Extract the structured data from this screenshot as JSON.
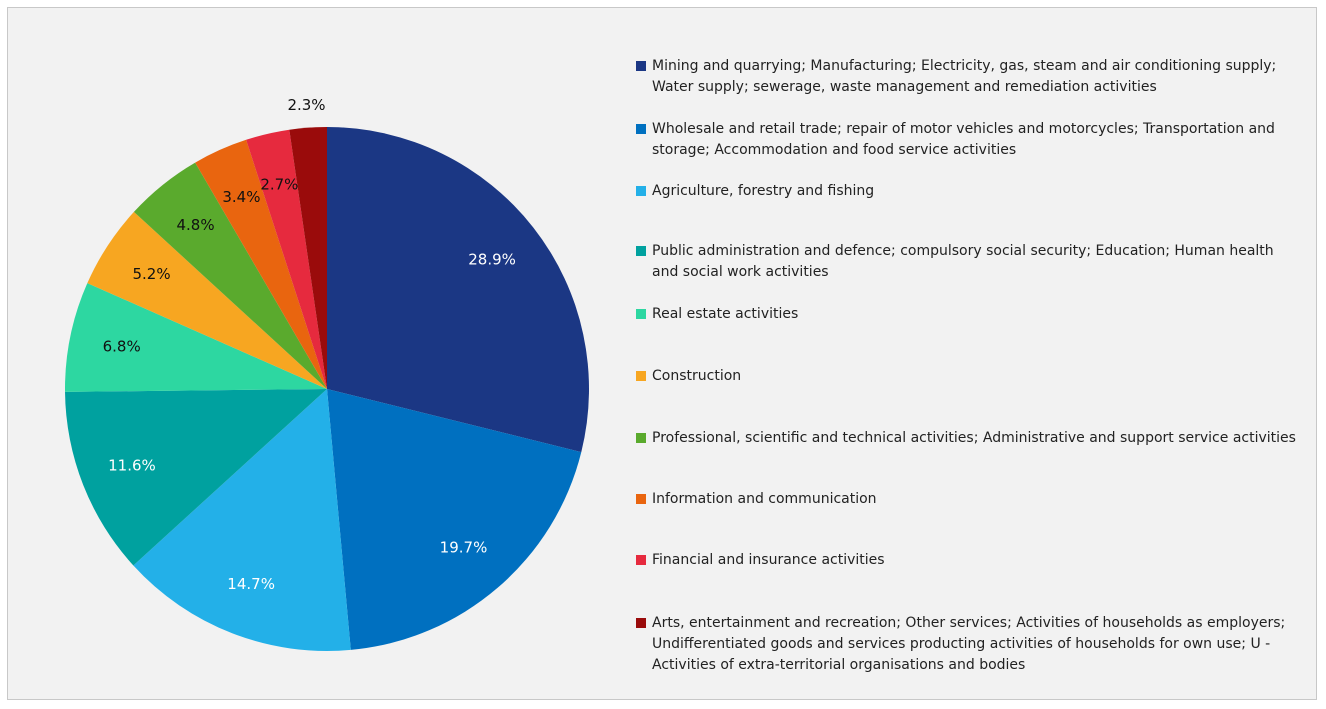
{
  "chart_data": {
    "type": "pie",
    "categories": [
      "Mining and quarrying; Manufacturing; Electricity, gas, steam and air conditioning supply; Water supply; sewerage, waste management and remediation activities",
      "Wholesale and retail trade; repair of motor vehicles and motorcycles; Transportation and storage; Accommodation and food service activities",
      "Agriculture, forestry and fishing",
      "Public administration and defence; compulsory social security; Education; Human health and social work activities",
      "Real estate activities",
      "Construction",
      "Professional, scientific and technical activities; Administrative and support service activities",
      "Information and communication",
      "Financial and insurance activities",
      "Arts, entertainment and recreation; Other services;  Activities of households as employers; Undifferentiated goods and services producting activities of households for own use; U - Activities of extra-territorial organisations and bodies"
    ],
    "values": [
      28.9,
      19.7,
      14.7,
      11.6,
      6.8,
      5.2,
      4.8,
      3.4,
      2.7,
      2.3
    ],
    "value_labels": [
      "28.9%",
      "19.7%",
      "14.7%",
      "11.6%",
      "6.8%",
      "5.2%",
      "4.8%",
      "3.4%",
      "2.7%",
      "2.3%"
    ],
    "colors": [
      "#1b3784",
      "#0070c0",
      "#23b0e8",
      "#00a19f",
      "#2dd7a1",
      "#f7a621",
      "#5aaa2d",
      "#e9650f",
      "#e62a3e",
      "#9a0b0b"
    ],
    "legend": "right"
  }
}
